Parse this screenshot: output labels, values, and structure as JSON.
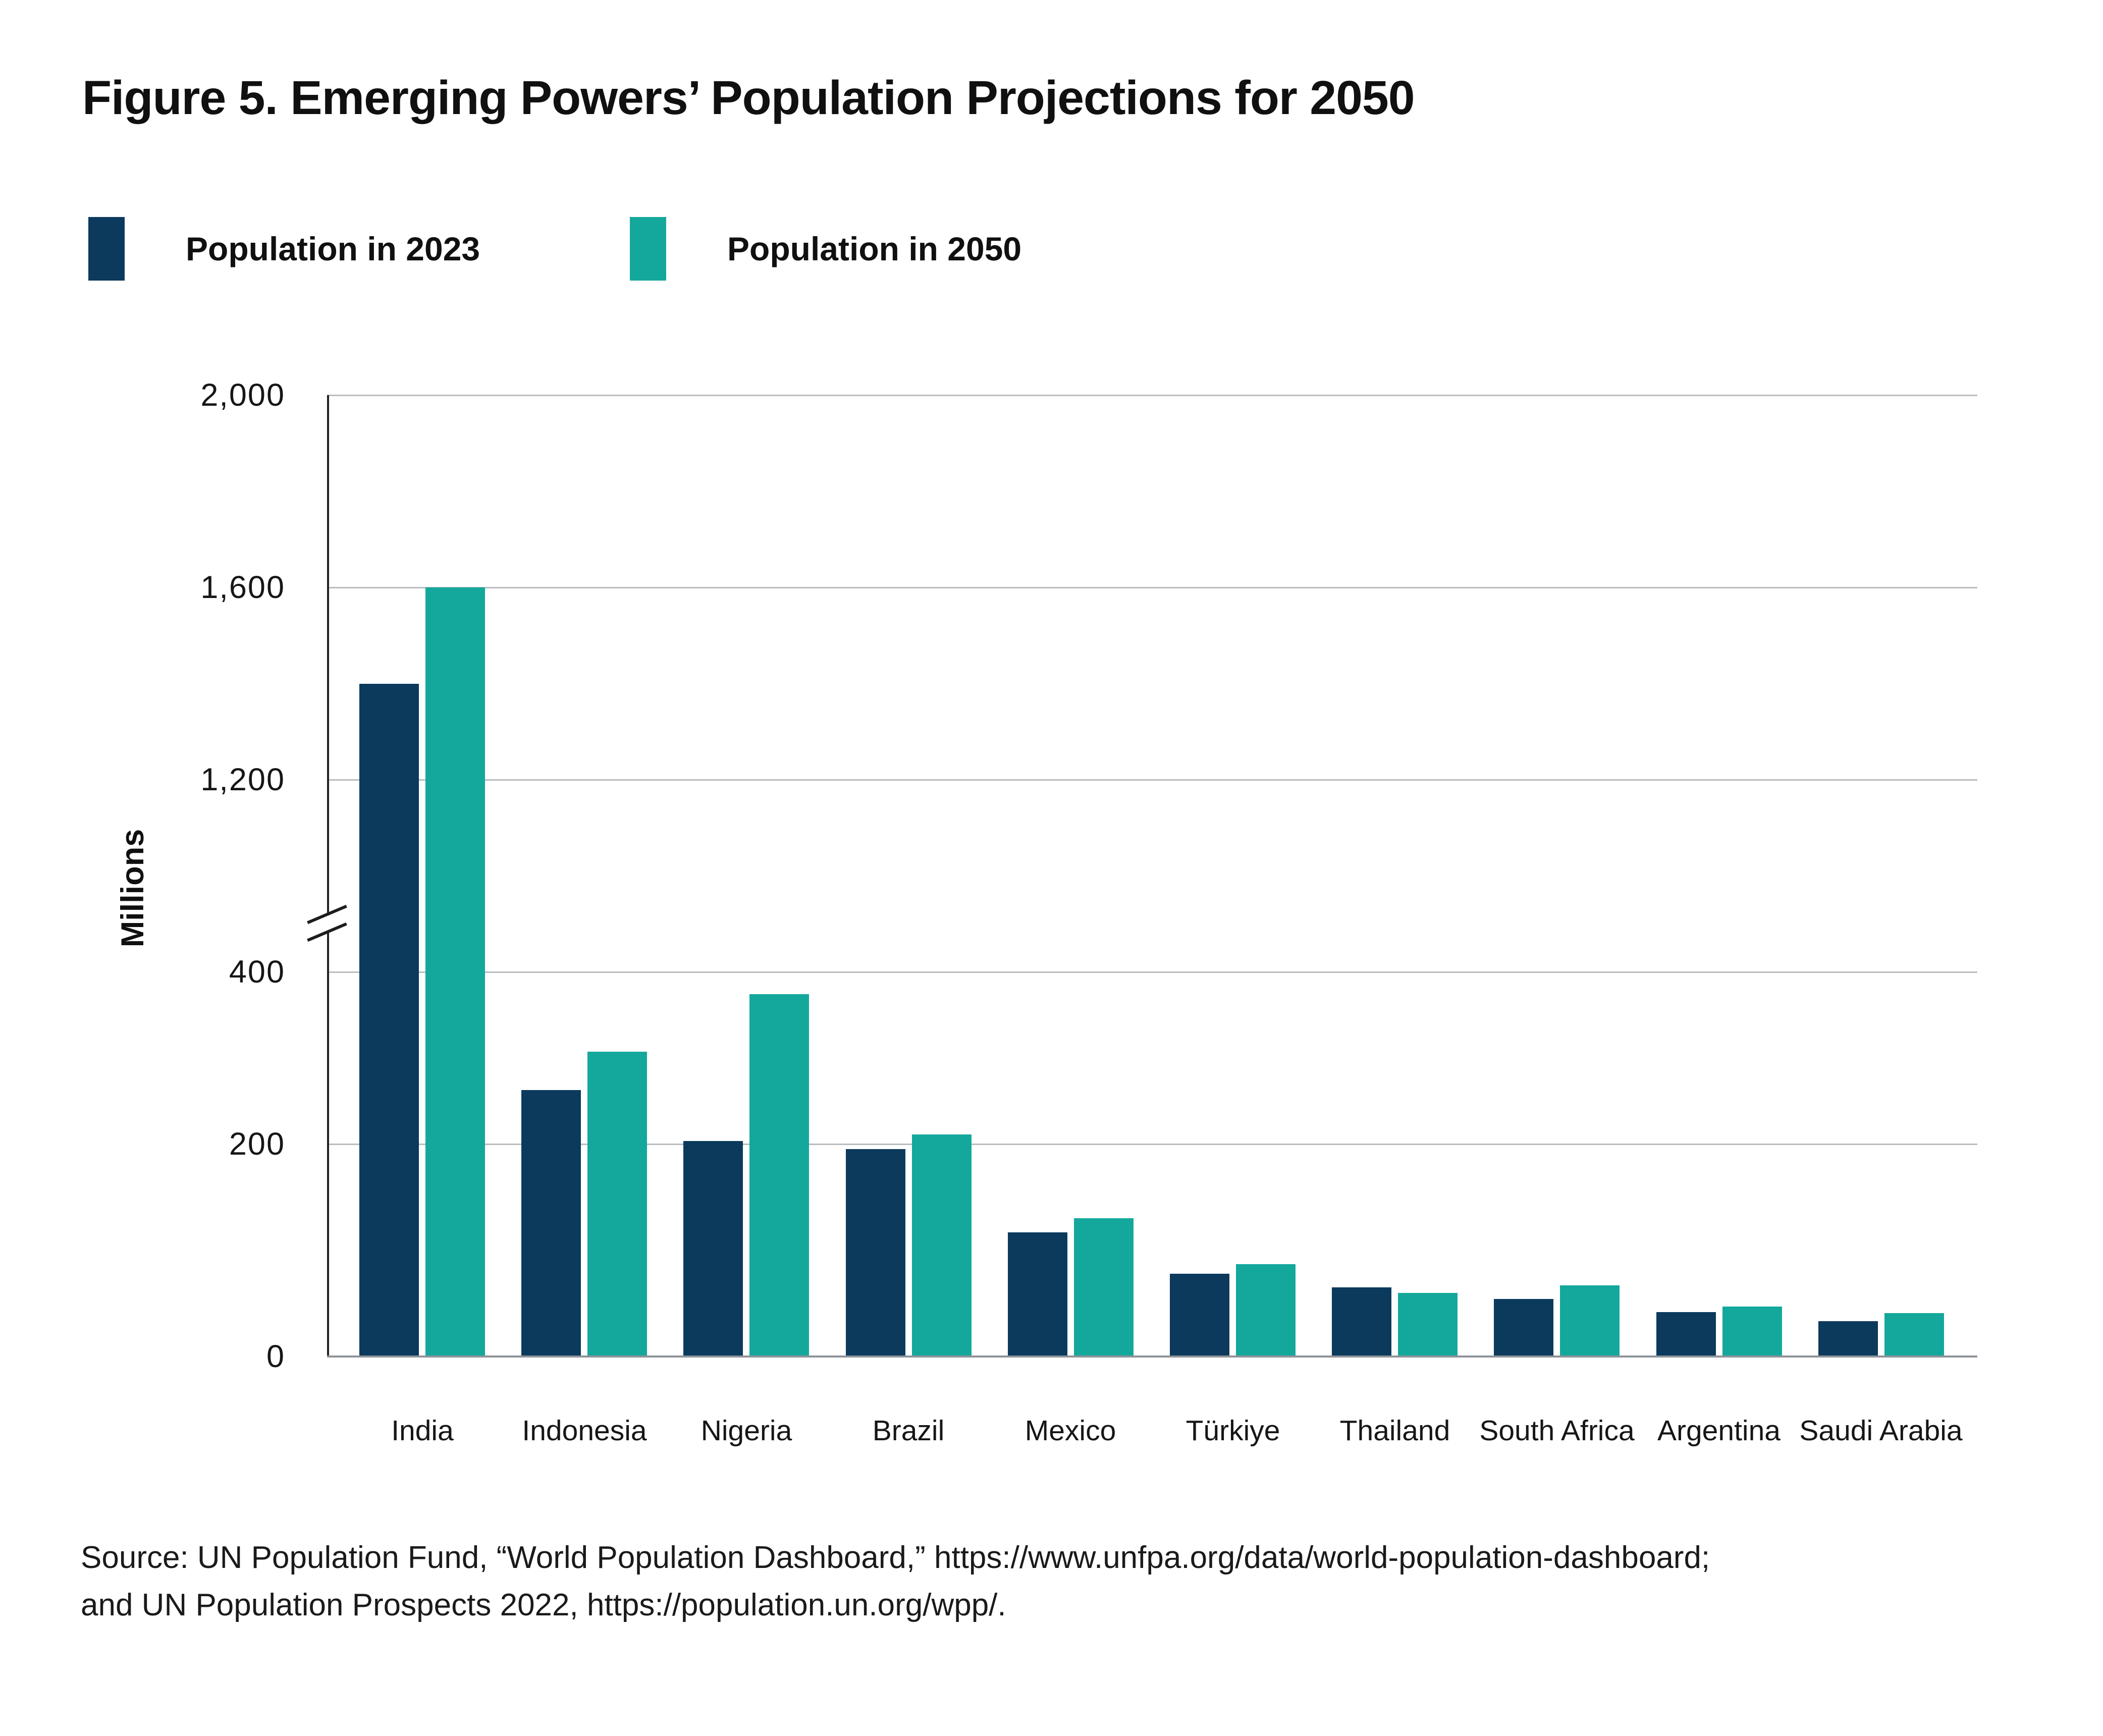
{
  "figure": {
    "title": "Figure 5. Emerging Powers’ Population Projections for 2050",
    "source_line1": "Source: UN Population Fund, “World Population Dashboard,” https://www.unfpa.org/data/world-population-dashboard;",
    "source_line2": "and UN Population Prospects 2022,  https://population.un.org/wpp/."
  },
  "legend": [
    {
      "label": "Population in 2023",
      "color": "#0b3a5d"
    },
    {
      "label": "Population in 2050",
      "color": "#14a89c"
    }
  ],
  "chart_data": {
    "type": "bar",
    "title": "Figure 5. Emerging Powers’ Population Projections for 2050",
    "xlabel": "",
    "ylabel": "Millions",
    "categories": [
      "India",
      "Indonesia",
      "Nigeria",
      "Brazil",
      "Mexico",
      "Türkiye",
      "Thailand",
      "South Africa",
      "Argentina",
      "Saudi Arabia"
    ],
    "series": [
      {
        "name": "Population in 2023",
        "color": "#0b3a5d",
        "values": [
          1400,
          277,
          224,
          216,
          129,
          86,
          72,
          60,
          46,
          37
        ]
      },
      {
        "name": "Population in 2050",
        "color": "#14a89c",
        "values": [
          1600,
          317,
          377,
          231,
          144,
          96,
          66,
          74,
          52,
          45
        ]
      }
    ],
    "y_ticks": [
      {
        "value": 0,
        "label": "0"
      },
      {
        "value": 200,
        "label": "200"
      },
      {
        "value": 400,
        "label": "400"
      },
      {
        "value": 1200,
        "label": "1,200"
      },
      {
        "value": 1600,
        "label": "1,600"
      },
      {
        "value": 2000,
        "label": "2,000"
      }
    ],
    "ylim": [
      0,
      2000
    ],
    "axis_break": {
      "between": [
        400,
        1200
      ]
    },
    "grid": "horizontal",
    "legend_position": "top-left"
  },
  "colors": {
    "bar_2023": "#0b3a5d",
    "bar_2050": "#14a89c",
    "gridline": "#b9bdc0",
    "axis": "#222222",
    "baseline": "#8e9398",
    "text": "#101010",
    "background": "#ffffff"
  }
}
